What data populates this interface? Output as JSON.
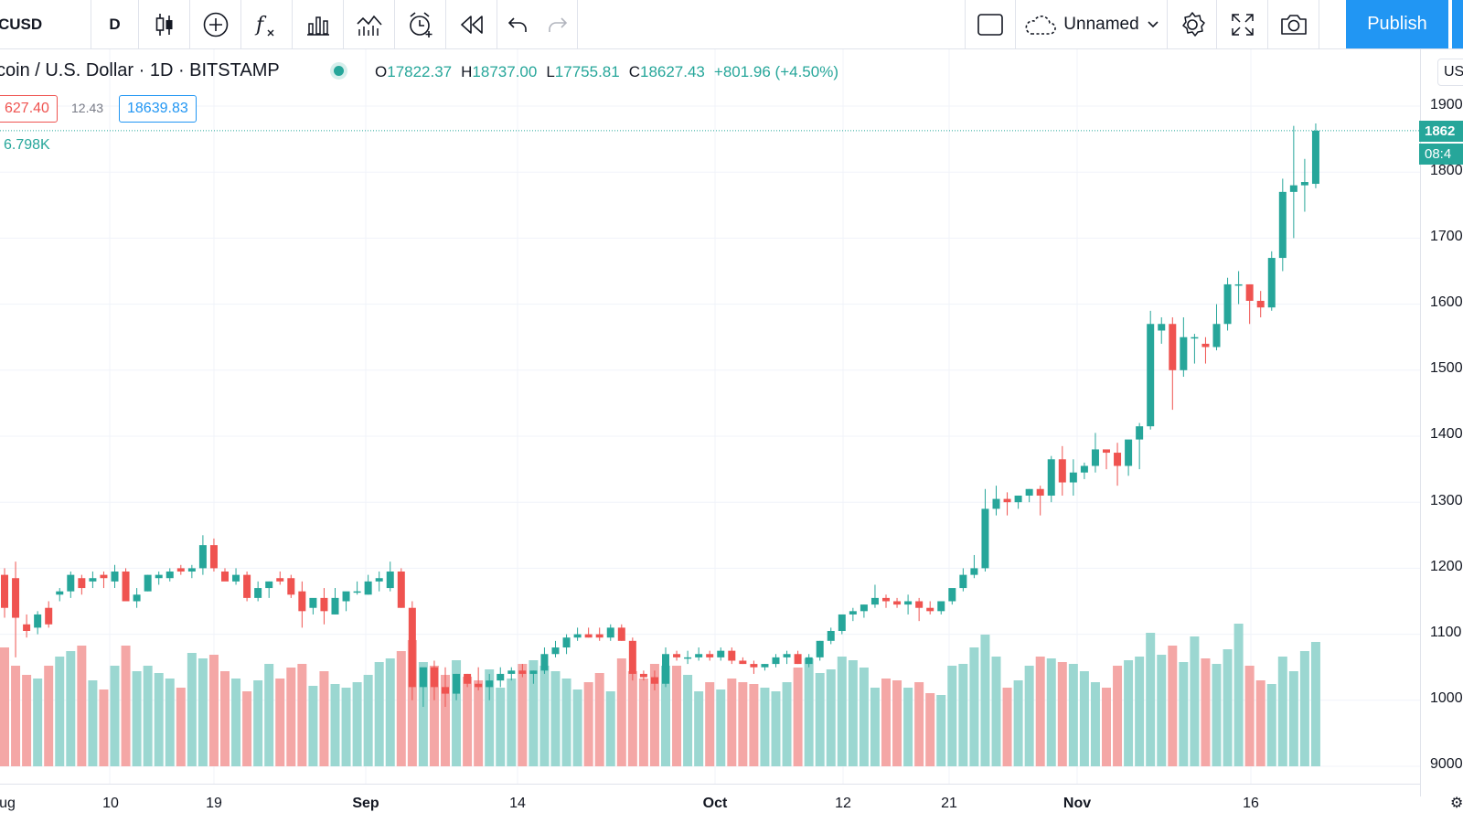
{
  "toolbar": {
    "symbol": "CUSD",
    "interval": "D",
    "layout_name": "Unnamed",
    "publish_label": "Publish",
    "icons": [
      "candles-icon",
      "add-compare-icon",
      "indicators-icon",
      "templates-icon",
      "financials-icon",
      "alert-icon",
      "replay-icon",
      "undo-icon",
      "redo-icon",
      "fullscreen-toggle-icon",
      "cloud-icon",
      "chevron-down-icon",
      "settings-icon",
      "fullscreen-icon",
      "camera-icon"
    ]
  },
  "legend": {
    "title": "coin / U.S. Dollar · 1D · BITSTAMP",
    "open_label": "O",
    "open": "17822.37",
    "high_label": "H",
    "high": "18737.00",
    "low_label": "L",
    "low": "17755.81",
    "close_label": "C",
    "close": "18627.43",
    "change": "+801.96 (+4.50%)",
    "bid": "627.40",
    "spread": "12.43",
    "ask": "18639.83",
    "volume": "6.798K"
  },
  "price_axis": {
    "currency_button": "US",
    "labels": [
      "1900",
      "1800",
      "1700",
      "1600",
      "1500",
      "1400",
      "1300",
      "1200",
      "1100",
      "1000",
      "9000"
    ],
    "current_price": "1862",
    "countdown": "08:4"
  },
  "time_axis": {
    "labels": [
      "ug",
      "10",
      "19",
      "Sep",
      "14",
      "Oct",
      "12",
      "21",
      "Nov",
      "16"
    ]
  },
  "colors": {
    "up": "#26a69a",
    "down": "#ef5350",
    "accent": "#2196f3"
  },
  "chart_data": {
    "type": "candlestick",
    "symbol": "BTCUSD",
    "exchange": "BITSTAMP",
    "interval": "1D",
    "ylim": [
      9000,
      19000
    ],
    "candles": [
      [
        11900,
        12000,
        11250,
        11400
      ],
      [
        11850,
        12100,
        10650,
        11250
      ],
      [
        11150,
        11300,
        10950,
        11050
      ],
      [
        11100,
        11350,
        11000,
        11300
      ],
      [
        11400,
        11500,
        11100,
        11150
      ],
      [
        11600,
        11700,
        11500,
        11650
      ],
      [
        11650,
        11950,
        11550,
        11900
      ],
      [
        11850,
        11900,
        11600,
        11700
      ],
      [
        11800,
        11950,
        11700,
        11850
      ],
      [
        11900,
        11950,
        11700,
        11850
      ],
      [
        11800,
        12050,
        11700,
        11950
      ],
      [
        11950,
        12000,
        11500,
        11500
      ],
      [
        11500,
        11700,
        11400,
        11600
      ],
      [
        11650,
        11900,
        11650,
        11900
      ],
      [
        11850,
        11950,
        11750,
        11900
      ],
      [
        11850,
        12000,
        11800,
        11950
      ],
      [
        12000,
        12050,
        11900,
        11950
      ],
      [
        11950,
        12050,
        11850,
        12000
      ],
      [
        12000,
        12500,
        11900,
        12350
      ],
      [
        12350,
        12450,
        11950,
        12000
      ],
      [
        11950,
        12000,
        11850,
        11800
      ],
      [
        11800,
        12000,
        11750,
        11900
      ],
      [
        11900,
        11950,
        11500,
        11550
      ],
      [
        11550,
        11800,
        11500,
        11700
      ],
      [
        11700,
        11800,
        11550,
        11800
      ],
      [
        11850,
        11950,
        11750,
        11800
      ],
      [
        11850,
        11900,
        11550,
        11600
      ],
      [
        11650,
        11800,
        11100,
        11350
      ],
      [
        11400,
        11500,
        11300,
        11550
      ],
      [
        11550,
        11700,
        11150,
        11350
      ],
      [
        11300,
        11700,
        11300,
        11550
      ],
      [
        11500,
        11600,
        11350,
        11650
      ],
      [
        11650,
        11800,
        11600,
        11650
      ],
      [
        11600,
        11900,
        11600,
        11800
      ],
      [
        11800,
        11950,
        11650,
        11850
      ],
      [
        11700,
        12100,
        11650,
        11950
      ],
      [
        11950,
        12000,
        11400,
        11400
      ],
      [
        11400,
        11500,
        10000,
        10200
      ],
      [
        10200,
        10400,
        9900,
        10500
      ],
      [
        10500,
        10600,
        10000,
        10200
      ],
      [
        10200,
        10500,
        9900,
        10100
      ],
      [
        10100,
        10400,
        10000,
        10400
      ],
      [
        10400,
        10400,
        10200,
        10250
      ],
      [
        10250,
        10500,
        10150,
        10200
      ],
      [
        10200,
        10400,
        10000,
        10300
      ],
      [
        10300,
        10500,
        10200,
        10400
      ],
      [
        10400,
        10500,
        10300,
        10450
      ],
      [
        10450,
        10550,
        10350,
        10400
      ],
      [
        10400,
        10450,
        10250,
        10450
      ],
      [
        10450,
        10800,
        10400,
        10700
      ],
      [
        10700,
        10900,
        10650,
        10800
      ],
      [
        10800,
        11000,
        10700,
        10950
      ],
      [
        10950,
        11100,
        10900,
        11000
      ],
      [
        11000,
        11100,
        10950,
        10950
      ],
      [
        11000,
        11100,
        10900,
        10950
      ],
      [
        10950,
        11150,
        10900,
        11100
      ],
      [
        11100,
        11150,
        10900,
        10900
      ],
      [
        10900,
        10950,
        10300,
        10400
      ],
      [
        10400,
        10450,
        10300,
        10350
      ],
      [
        10350,
        10450,
        10150,
        10250
      ],
      [
        10250,
        10800,
        10200,
        10700
      ],
      [
        10700,
        10750,
        10600,
        10650
      ],
      [
        10650,
        10750,
        10550,
        10650
      ],
      [
        10650,
        10800,
        10600,
        10700
      ],
      [
        10700,
        10750,
        10600,
        10650
      ],
      [
        10650,
        10800,
        10600,
        10750
      ],
      [
        10750,
        10800,
        10550,
        10600
      ],
      [
        10600,
        10650,
        10550,
        10550
      ],
      [
        10550,
        10600,
        10400,
        10500
      ],
      [
        10500,
        10550,
        10450,
        10550
      ],
      [
        10550,
        10700,
        10500,
        10650
      ],
      [
        10650,
        10750,
        10550,
        10700
      ],
      [
        10700,
        10750,
        10550,
        10550
      ],
      [
        10550,
        10700,
        10500,
        10650
      ],
      [
        10650,
        10900,
        10600,
        10900
      ],
      [
        10900,
        11100,
        10850,
        11050
      ],
      [
        11050,
        11250,
        11000,
        11300
      ],
      [
        11300,
        11400,
        11200,
        11350
      ],
      [
        11350,
        11450,
        11250,
        11450
      ],
      [
        11450,
        11750,
        11400,
        11550
      ],
      [
        11550,
        11600,
        11400,
        11500
      ],
      [
        11500,
        11550,
        11400,
        11450
      ],
      [
        11450,
        11600,
        11300,
        11500
      ],
      [
        11500,
        11550,
        11200,
        11400
      ],
      [
        11400,
        11500,
        11300,
        11350
      ],
      [
        11350,
        11450,
        11300,
        11500
      ],
      [
        11500,
        11650,
        11450,
        11700
      ],
      [
        11700,
        12000,
        11650,
        11900
      ],
      [
        11900,
        12200,
        11850,
        12000
      ],
      [
        12000,
        13200,
        11950,
        12900
      ],
      [
        12900,
        13250,
        12800,
        13050
      ],
      [
        13050,
        13150,
        12800,
        13000
      ],
      [
        13000,
        13100,
        12900,
        13100
      ],
      [
        13100,
        13200,
        13000,
        13200
      ],
      [
        13200,
        13250,
        12800,
        13100
      ],
      [
        13100,
        13700,
        13000,
        13650
      ],
      [
        13650,
        13850,
        13100,
        13300
      ],
      [
        13300,
        13650,
        13100,
        13450
      ],
      [
        13450,
        13600,
        13350,
        13550
      ],
      [
        13550,
        14050,
        13450,
        13800
      ],
      [
        13800,
        13800,
        13500,
        13750
      ],
      [
        13750,
        13900,
        13250,
        13550
      ],
      [
        13550,
        13900,
        13400,
        13950
      ],
      [
        13950,
        14200,
        13500,
        14150
      ],
      [
        14150,
        15900,
        14100,
        15700
      ],
      [
        15600,
        15800,
        15400,
        15700
      ],
      [
        15700,
        15800,
        14400,
        15000
      ],
      [
        15000,
        15800,
        14900,
        15500
      ],
      [
        15500,
        15550,
        15100,
        15500
      ],
      [
        15400,
        15500,
        15100,
        15350
      ],
      [
        15350,
        16000,
        15300,
        15700
      ],
      [
        15700,
        16400,
        15600,
        16300
      ],
      [
        16300,
        16500,
        16000,
        16300
      ],
      [
        16300,
        16300,
        15700,
        16050
      ],
      [
        16050,
        16200,
        15800,
        15950
      ],
      [
        15950,
        16800,
        15900,
        16700
      ],
      [
        16700,
        17900,
        16500,
        17700
      ],
      [
        17700,
        18700,
        17000,
        17800
      ],
      [
        17800,
        18200,
        17400,
        17850
      ],
      [
        17822.37,
        18737,
        17755.81,
        18627.43
      ]
    ],
    "volume_up_color": "#26a69a",
    "volume_down_color": "#ef5350"
  }
}
